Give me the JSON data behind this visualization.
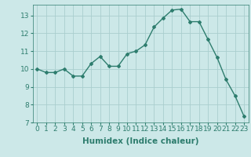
{
  "x": [
    0,
    1,
    2,
    3,
    4,
    5,
    6,
    7,
    8,
    9,
    10,
    11,
    12,
    13,
    14,
    15,
    16,
    17,
    18,
    19,
    20,
    21,
    22,
    23
  ],
  "y": [
    10.0,
    9.8,
    9.8,
    10.0,
    9.6,
    9.6,
    10.3,
    10.7,
    10.15,
    10.15,
    10.85,
    11.0,
    11.35,
    12.35,
    12.85,
    13.3,
    13.35,
    12.65,
    12.65,
    11.65,
    10.65,
    9.4,
    8.5,
    7.35
  ],
  "line_color": "#2e7d6e",
  "marker": "D",
  "marker_size": 2,
  "bg_color": "#cce8e8",
  "grid_color": "#aacece",
  "xlabel": "Humidex (Indice chaleur)",
  "xlim": [
    -0.5,
    23.5
  ],
  "ylim": [
    7,
    13.6
  ],
  "yticks": [
    7,
    8,
    9,
    10,
    11,
    12,
    13
  ],
  "xticks": [
    0,
    1,
    2,
    3,
    4,
    5,
    6,
    7,
    8,
    9,
    10,
    11,
    12,
    13,
    14,
    15,
    16,
    17,
    18,
    19,
    20,
    21,
    22,
    23
  ],
  "tick_label_fontsize": 6.5,
  "xlabel_fontsize": 7.5
}
